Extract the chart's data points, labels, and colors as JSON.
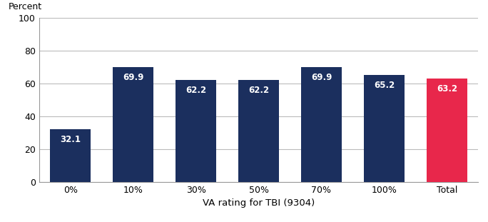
{
  "categories": [
    "0%",
    "10%",
    "30%",
    "50%",
    "70%",
    "100%",
    "Total"
  ],
  "values": [
    32.1,
    69.9,
    62.2,
    62.2,
    69.9,
    65.2,
    63.2
  ],
  "bar_colors": [
    "#1b2f5e",
    "#1b2f5e",
    "#1b2f5e",
    "#1b2f5e",
    "#1b2f5e",
    "#1b2f5e",
    "#e8274b"
  ],
  "percent_label": "Percent",
  "xlabel": "VA rating for TBI (9304)",
  "ylim": [
    0,
    100
  ],
  "yticks": [
    0,
    20,
    40,
    60,
    80,
    100
  ],
  "label_color": "#ffffff",
  "label_fontsize": 8.5,
  "axis_label_fontsize": 9.5,
  "tick_fontsize": 9,
  "background_color": "#ffffff",
  "grid_color": "#bbbbbb",
  "spine_color": "#999999"
}
